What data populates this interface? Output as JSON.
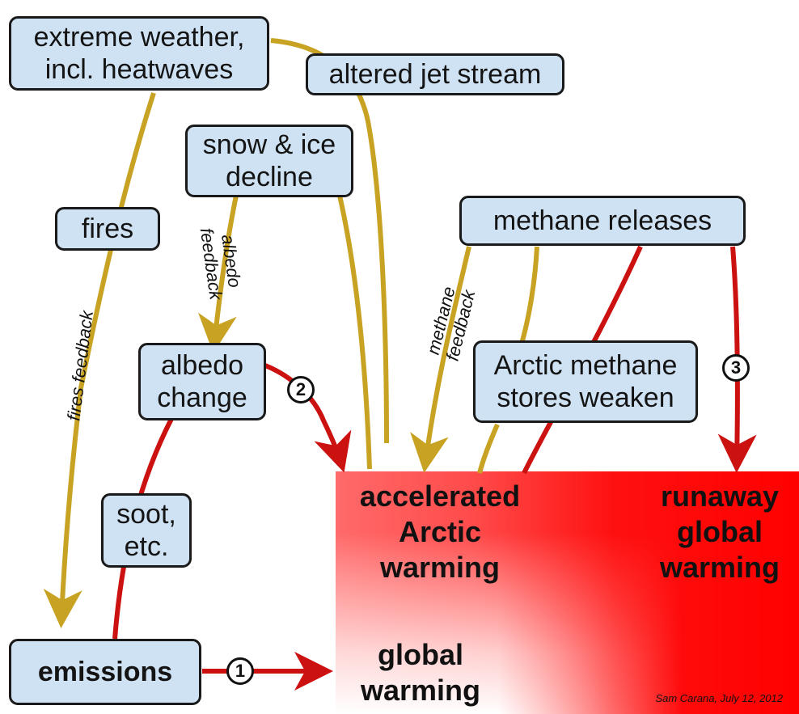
{
  "nodes": {
    "extreme_weather": "extreme weather,\nincl. heatwaves",
    "altered_jet_stream": "altered jet stream",
    "snow_ice_decline": "snow & ice\ndecline",
    "fires": "fires",
    "methane_releases": "methane releases",
    "albedo_change": "albedo\nchange",
    "arctic_methane_stores": "Arctic methane\nstores weaken",
    "soot": "soot,\netc.",
    "emissions": "emissions"
  },
  "outcomes": {
    "accelerated_arctic_warming": "accelerated\nArctic\nwarming",
    "runaway_global_warming": "runaway\nglobal\nwarming",
    "global_warming": "global\nwarming"
  },
  "feedback_labels": {
    "fires_feedback": "fires feedback",
    "albedo_feedback": "albedo\nfeedback",
    "methane_feedback": "methane\nfeedback"
  },
  "step_markers": [
    "1",
    "2",
    "3"
  ],
  "credit": "Sam Carana, July 12, 2012",
  "colors": {
    "box_fill": "#cfe2f3",
    "feedback_arrow": "#c8a222",
    "causal_arrow": "#cc1111",
    "warming_red": "#ff0000"
  }
}
